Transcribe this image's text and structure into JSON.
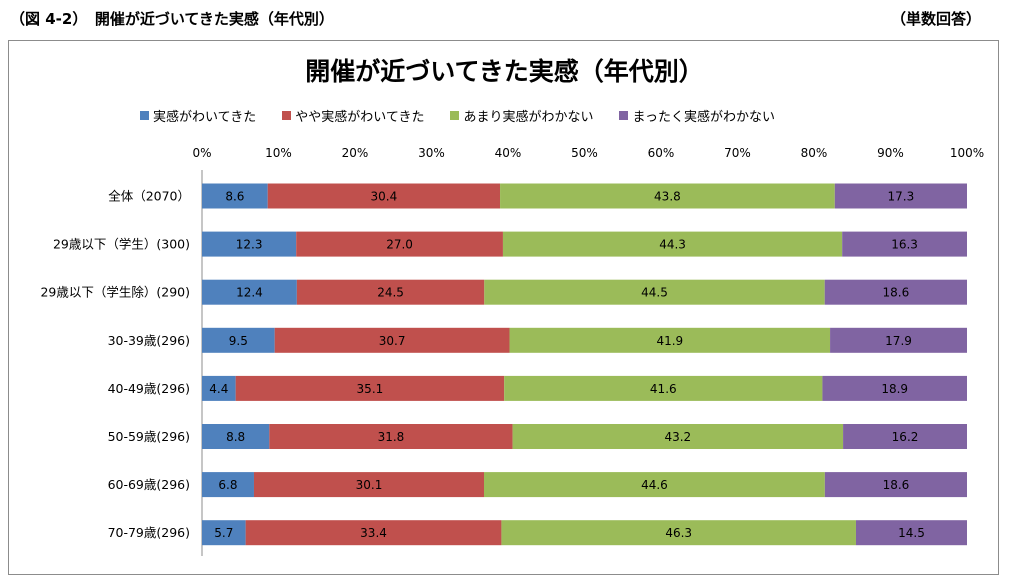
{
  "header": {
    "figure_title": "（図 4-2）　開催が近づいてきた実感（年代別）",
    "unit": "（単数回答）"
  },
  "chart_data": {
    "type": "bar",
    "orientation": "horizontal",
    "stacked": "percent",
    "title": "開催が近づいてきた実感（年代別）",
    "categories": [
      "全体（2070）",
      "29歳以下（学生）(300)",
      "29歳以下（学生除）(290)",
      "30-39歳(296)",
      "40-49歳(296)",
      "50-59歳(296)",
      "60-69歳(296)",
      "70-79歳(296)"
    ],
    "series": [
      {
        "name": "実感がわいてきた",
        "color": "#4f81bd",
        "values": [
          8.6,
          12.3,
          12.4,
          9.5,
          4.4,
          8.8,
          6.8,
          5.7
        ],
        "labels": [
          "8.6",
          "12.3",
          "12.4",
          "9.5",
          "4.4",
          "8.8",
          "6.8",
          "5.7"
        ]
      },
      {
        "name": "やや実感がわいてきた",
        "color": "#c0504d",
        "values": [
          30.4,
          27.0,
          24.5,
          30.7,
          35.1,
          31.8,
          30.1,
          33.4
        ],
        "labels": [
          "30.4",
          "27.0",
          "24.5",
          "30.7",
          "35.1",
          "31.8",
          "30.1",
          "33.4"
        ]
      },
      {
        "name": "あまり実感がわかない",
        "color": "#9bbb59",
        "values": [
          43.8,
          44.3,
          44.5,
          41.9,
          41.6,
          43.2,
          44.6,
          46.3
        ],
        "labels": [
          "43.8",
          "44.3",
          "44.5",
          "41.9",
          "41.6",
          "43.2",
          "44.6",
          "46.3"
        ]
      },
      {
        "name": "まったく実感がわかない",
        "color": "#8064a2",
        "values": [
          17.3,
          16.3,
          18.6,
          17.9,
          18.9,
          16.2,
          18.6,
          14.5
        ],
        "labels": [
          "17.3",
          "16.3",
          "18.6",
          "17.9",
          "18.9",
          "16.2",
          "18.6",
          "14.5"
        ]
      }
    ],
    "x_ticks": [
      "0%",
      "10%",
      "20%",
      "30%",
      "40%",
      "50%",
      "60%",
      "70%",
      "80%",
      "90%",
      "100%"
    ],
    "xlim": [
      0,
      100
    ],
    "legend_position": "top",
    "grid": false
  }
}
